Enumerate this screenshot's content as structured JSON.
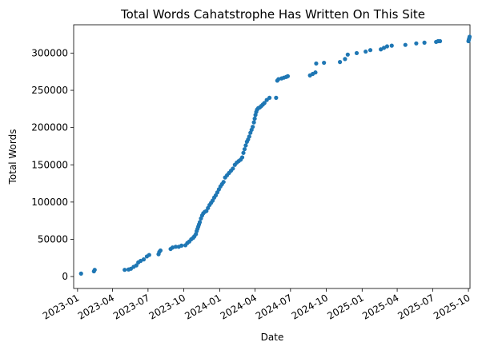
{
  "chart_data": {
    "type": "scatter",
    "title": "Total Words Cahatstrophe Has Written On This Site",
    "xlabel": "Date",
    "ylabel": "Total Words",
    "x_type": "date",
    "xlim": [
      "2022-12-22",
      "2025-10-05"
    ],
    "ylim": [
      -16000,
      338000
    ],
    "x_ticks": [
      {
        "date": "2023-01-01",
        "label": "2023-01"
      },
      {
        "date": "2023-04-01",
        "label": "2023-04"
      },
      {
        "date": "2023-07-01",
        "label": "2023-07"
      },
      {
        "date": "2023-10-01",
        "label": "2023-10"
      },
      {
        "date": "2024-01-01",
        "label": "2024-01"
      },
      {
        "date": "2024-04-01",
        "label": "2024-04"
      },
      {
        "date": "2024-07-01",
        "label": "2024-07"
      },
      {
        "date": "2024-10-01",
        "label": "2024-10"
      },
      {
        "date": "2025-01-01",
        "label": "2025-01"
      },
      {
        "date": "2025-04-01",
        "label": "2025-04"
      },
      {
        "date": "2025-07-01",
        "label": "2025-07"
      },
      {
        "date": "2025-10-01",
        "label": "2025-10"
      }
    ],
    "y_ticks": [
      0,
      50000,
      100000,
      150000,
      200000,
      250000,
      300000
    ],
    "y_tick_labels": [
      "0",
      "50000",
      "100000",
      "150000",
      "200000",
      "250000",
      "300000"
    ],
    "grid": false,
    "marker_color": "#1f77b4",
    "series": [
      {
        "points": [
          [
            "2023-01-10",
            4000
          ],
          [
            "2023-02-12",
            7000
          ],
          [
            "2023-02-14",
            9000
          ],
          [
            "2023-05-02",
            9000
          ],
          [
            "2023-05-12",
            9500
          ],
          [
            "2023-05-18",
            10500
          ],
          [
            "2023-05-25",
            13000
          ],
          [
            "2023-06-01",
            15000
          ],
          [
            "2023-06-06",
            19000
          ],
          [
            "2023-06-12",
            21000
          ],
          [
            "2023-06-20",
            23000
          ],
          [
            "2023-06-28",
            27000
          ],
          [
            "2023-07-04",
            29000
          ],
          [
            "2023-07-28",
            30000
          ],
          [
            "2023-07-30",
            33000
          ],
          [
            "2023-08-02",
            35000
          ],
          [
            "2023-08-28",
            37000
          ],
          [
            "2023-09-02",
            39000
          ],
          [
            "2023-09-10",
            40000
          ],
          [
            "2023-09-18",
            40000
          ],
          [
            "2023-09-25",
            41500
          ],
          [
            "2023-10-05",
            42000
          ],
          [
            "2023-10-10",
            45000
          ],
          [
            "2023-10-15",
            47000
          ],
          [
            "2023-10-20",
            50000
          ],
          [
            "2023-10-25",
            52000
          ],
          [
            "2023-10-28",
            54000
          ],
          [
            "2023-11-01",
            57000
          ],
          [
            "2023-11-03",
            61000
          ],
          [
            "2023-11-05",
            64000
          ],
          [
            "2023-11-07",
            67000
          ],
          [
            "2023-11-09",
            70000
          ],
          [
            "2023-11-11",
            73000
          ],
          [
            "2023-11-14",
            78000
          ],
          [
            "2023-11-17",
            82000
          ],
          [
            "2023-11-20",
            85000
          ],
          [
            "2023-11-24",
            87000
          ],
          [
            "2023-11-28",
            88000
          ],
          [
            "2023-12-02",
            92000
          ],
          [
            "2023-12-06",
            96000
          ],
          [
            "2023-12-10",
            99000
          ],
          [
            "2023-12-14",
            102000
          ],
          [
            "2023-12-18",
            106000
          ],
          [
            "2023-12-22",
            109000
          ],
          [
            "2023-12-26",
            113000
          ],
          [
            "2023-12-30",
            117000
          ],
          [
            "2024-01-03",
            121000
          ],
          [
            "2024-01-07",
            124000
          ],
          [
            "2024-01-11",
            127000
          ],
          [
            "2024-01-15",
            133000
          ],
          [
            "2024-01-20",
            136000
          ],
          [
            "2024-01-25",
            139000
          ],
          [
            "2024-01-30",
            142000
          ],
          [
            "2024-02-04",
            145000
          ],
          [
            "2024-02-09",
            150000
          ],
          [
            "2024-02-14",
            153000
          ],
          [
            "2024-02-19",
            155000
          ],
          [
            "2024-02-24",
            157000
          ],
          [
            "2024-02-28",
            160000
          ],
          [
            "2024-03-02",
            166000
          ],
          [
            "2024-03-05",
            171000
          ],
          [
            "2024-03-08",
            176000
          ],
          [
            "2024-03-11",
            181000
          ],
          [
            "2024-03-14",
            184000
          ],
          [
            "2024-03-17",
            188000
          ],
          [
            "2024-03-20",
            193000
          ],
          [
            "2024-03-23",
            197000
          ],
          [
            "2024-03-26",
            201000
          ],
          [
            "2024-03-29",
            207000
          ],
          [
            "2024-03-31",
            212000
          ],
          [
            "2024-04-02",
            217000
          ],
          [
            "2024-04-04",
            221000
          ],
          [
            "2024-04-06",
            224000
          ],
          [
            "2024-04-09",
            226000
          ],
          [
            "2024-04-13",
            227000
          ],
          [
            "2024-04-17",
            229000
          ],
          [
            "2024-04-21",
            231000
          ],
          [
            "2024-04-25",
            233000
          ],
          [
            "2024-05-01",
            237000
          ],
          [
            "2024-05-08",
            240000
          ],
          [
            "2024-05-25",
            240000
          ],
          [
            "2024-05-28",
            263000
          ],
          [
            "2024-05-31",
            265000
          ],
          [
            "2024-06-08",
            266000
          ],
          [
            "2024-06-14",
            267000
          ],
          [
            "2024-06-20",
            268000
          ],
          [
            "2024-06-24",
            269000
          ],
          [
            "2024-08-20",
            270000
          ],
          [
            "2024-08-27",
            272000
          ],
          [
            "2024-09-03",
            274000
          ],
          [
            "2024-09-05",
            286000
          ],
          [
            "2024-09-25",
            287000
          ],
          [
            "2024-11-05",
            288000
          ],
          [
            "2024-11-18",
            292000
          ],
          [
            "2024-11-25",
            298000
          ],
          [
            "2024-12-18",
            300000
          ],
          [
            "2025-01-10",
            302000
          ],
          [
            "2025-01-22",
            304000
          ],
          [
            "2025-02-18",
            305000
          ],
          [
            "2025-02-26",
            307000
          ],
          [
            "2025-03-06",
            309000
          ],
          [
            "2025-03-18",
            310000
          ],
          [
            "2025-04-22",
            311000
          ],
          [
            "2025-05-20",
            313000
          ],
          [
            "2025-06-10",
            314000
          ],
          [
            "2025-07-10",
            315000
          ],
          [
            "2025-07-15",
            316000
          ],
          [
            "2025-07-20",
            316000
          ],
          [
            "2025-10-01",
            316000
          ],
          [
            "2025-10-02",
            318000
          ],
          [
            "2025-10-03",
            320000
          ],
          [
            "2025-10-04",
            322000
          ]
        ]
      }
    ]
  }
}
